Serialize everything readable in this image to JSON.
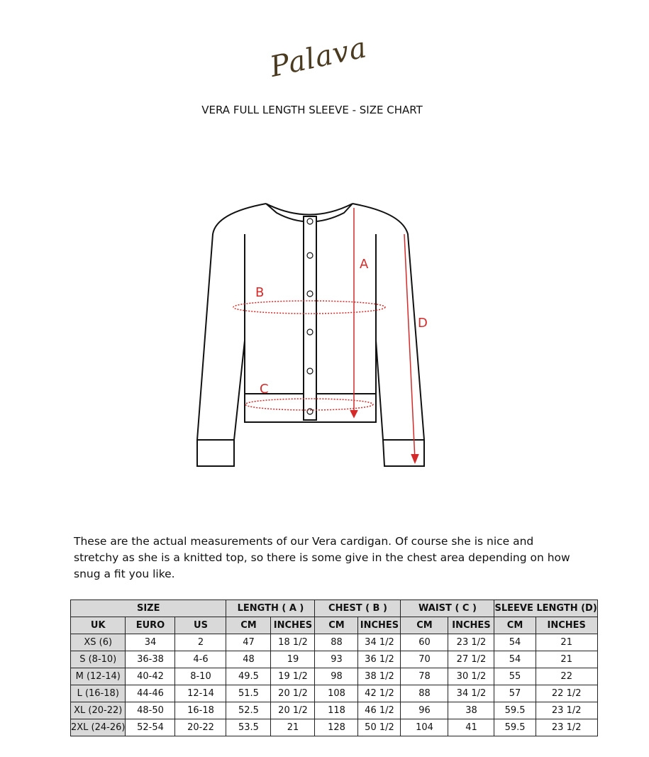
{
  "logo": "Palava",
  "title": "VERA FULL LENGTH SLEEVE - SIZE CHART",
  "diagram": {
    "labels": [
      "A",
      "B",
      "C",
      "D"
    ]
  },
  "description": "These are the actual measurements of our Vera cardigan. Of course she is nice and stretchy as she is a knitted top, so there is some give in the chest area depending on how snug a fit you like.",
  "table": {
    "group_headers": [
      "SIZE",
      "LENGTH  ( A )",
      "CHEST  ( B )",
      "WAIST ( C )",
      "SLEEVE LENGTH (D)"
    ],
    "column_headers": [
      "UK",
      "EURO",
      "US",
      "CM",
      "INCHES",
      "CM",
      "INCHES",
      "CM",
      "INCHES",
      "CM",
      "INCHES"
    ],
    "rows": [
      [
        "XS (6)",
        "34",
        "2",
        "47",
        "18 1/2",
        "88",
        "34 1/2",
        "60",
        "23 1/2",
        "54",
        "21"
      ],
      [
        "S (8-10)",
        "36-38",
        "4-6",
        "48",
        "19",
        "93",
        "36 1/2",
        "70",
        "27 1/2",
        "54",
        "21"
      ],
      [
        "M (12-14)",
        "40-42",
        "8-10",
        "49.5",
        "19 1/2",
        "98",
        "38 1/2",
        "78",
        "30 1/2",
        "55",
        "22"
      ],
      [
        "L (16-18)",
        "44-46",
        "12-14",
        "51.5",
        "20 1/2",
        "108",
        "42 1/2",
        "88",
        "34 1/2",
        "57",
        "22 1/2"
      ],
      [
        "XL (20-22)",
        "48-50",
        "16-18",
        "52.5",
        "20 1/2",
        "118",
        "46 1/2",
        "96",
        "38",
        "59.5",
        "23 1/2"
      ],
      [
        "2XL (24-26)",
        "52-54",
        "20-22",
        "53.5",
        "21",
        "128",
        "50 1/2",
        "104",
        "41",
        "59.5",
        "23 1/2"
      ]
    ]
  }
}
